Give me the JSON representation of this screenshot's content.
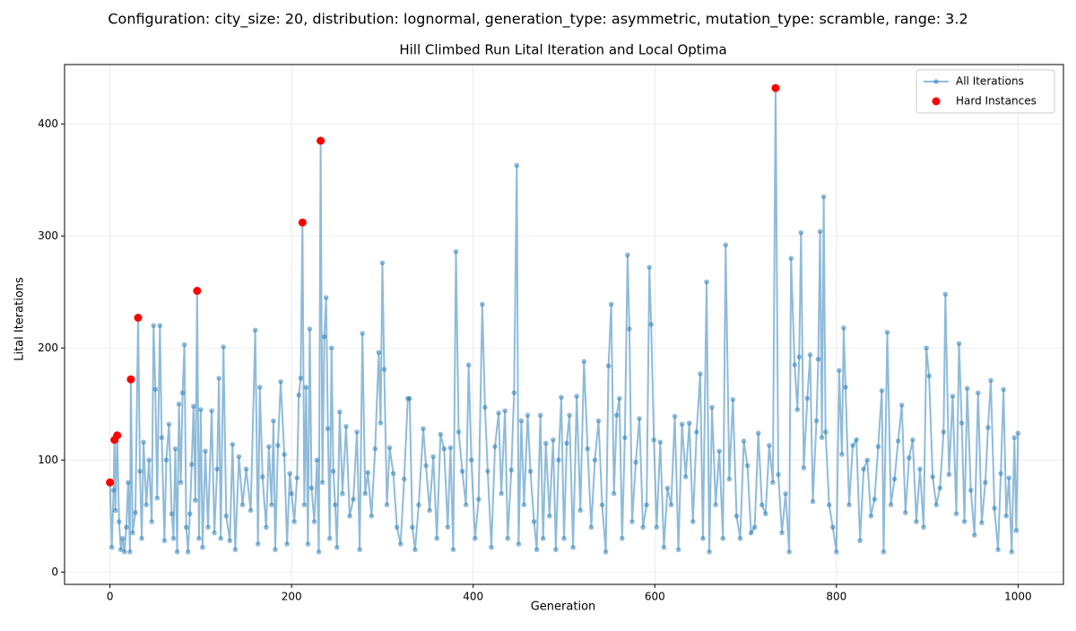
{
  "chart_data": {
    "type": "line",
    "suptitle": "Configuration: city_size: 20, distribution: lognormal, generation_type: asymmetric, mutation_type: scramble, range: 3.2",
    "title": "Hill Climbed Run Lital Iteration and Local Optima",
    "xlabel": "Generation",
    "ylabel": "Lital Iterations",
    "xlim": [
      -50,
      1050
    ],
    "ylim": [
      -11,
      453
    ],
    "xticks": [
      0,
      200,
      400,
      600,
      800,
      1000
    ],
    "yticks": [
      0,
      100,
      200,
      300,
      400
    ],
    "grid": true,
    "legend": "upper right",
    "series": [
      {
        "name": "All Iterations",
        "style": "line",
        "color": "#1f77b4",
        "x": [
          0,
          2,
          4,
          5,
          6,
          8,
          10,
          12,
          14,
          16,
          18,
          20,
          22,
          23,
          25,
          28,
          31,
          33,
          35,
          37,
          40,
          43,
          46,
          48,
          50,
          52,
          55,
          57,
          60,
          62,
          65,
          68,
          70,
          72,
          74,
          76,
          78,
          80,
          82,
          84,
          86,
          88,
          90,
          92,
          94,
          96,
          98,
          100,
          102,
          105,
          108,
          112,
          115,
          118,
          120,
          122,
          125,
          128,
          132,
          135,
          138,
          142,
          146,
          150,
          155,
          160,
          163,
          165,
          168,
          172,
          175,
          178,
          180,
          182,
          185,
          188,
          192,
          195,
          198,
          200,
          203,
          206,
          208,
          210,
          212,
          214,
          216,
          218,
          220,
          222,
          225,
          228,
          230,
          232,
          234,
          236,
          238,
          240,
          242,
          244,
          246,
          248,
          250,
          253,
          256,
          260,
          264,
          268,
          272,
          275,
          278,
          281,
          284,
          288,
          292,
          296,
          298,
          300,
          302,
          305,
          308,
          312,
          316,
          320,
          324,
          328,
          330,
          333,
          336,
          340,
          345,
          348,
          352,
          356,
          360,
          364,
          368,
          372,
          375,
          378,
          381,
          384,
          388,
          392,
          395,
          398,
          402,
          406,
          410,
          413,
          416,
          420,
          424,
          428,
          431,
          435,
          438,
          442,
          445,
          448,
          450,
          453,
          456,
          460,
          463,
          467,
          470,
          474,
          477,
          480,
          484,
          488,
          491,
          494,
          497,
          500,
          503,
          506,
          510,
          514,
          518,
          522,
          526,
          530,
          534,
          538,
          542,
          546,
          549,
          552,
          555,
          558,
          561,
          564,
          567,
          570,
          572,
          575,
          579,
          583,
          587,
          591,
          594,
          596,
          599,
          602,
          606,
          610,
          614,
          618,
          622,
          626,
          630,
          634,
          638,
          642,
          646,
          650,
          653,
          657,
          660,
          663,
          667,
          671,
          675,
          678,
          682,
          686,
          690,
          694,
          698,
          702,
          706,
          710,
          714,
          718,
          722,
          726,
          730,
          733,
          736,
          740,
          744,
          748,
          750,
          754,
          757,
          759,
          761,
          764,
          768,
          771,
          774,
          778,
          780,
          782,
          784,
          786,
          788,
          792,
          796,
          800,
          803,
          806,
          808,
          810,
          814,
          818,
          822,
          826,
          830,
          834,
          838,
          842,
          846,
          850,
          852,
          856,
          860,
          864,
          868,
          872,
          876,
          880,
          884,
          888,
          892,
          896,
          899,
          902,
          906,
          910,
          914,
          918,
          920,
          924,
          928,
          932,
          935,
          938,
          941,
          944,
          948,
          952,
          956,
          960,
          964,
          967,
          970,
          974,
          978,
          981,
          984,
          987,
          990,
          993,
          996,
          998,
          1000
        ],
        "values": [
          80,
          22,
          73,
          118,
          55,
          122,
          45,
          20,
          30,
          18,
          40,
          80,
          18,
          172,
          35,
          53,
          227,
          90,
          30,
          116,
          60,
          100,
          45,
          220,
          163,
          66,
          220,
          120,
          28,
          100,
          132,
          52,
          30,
          110,
          18,
          150,
          80,
          160,
          203,
          40,
          18,
          52,
          96,
          148,
          64,
          251,
          30,
          145,
          22,
          108,
          40,
          144,
          35,
          92,
          173,
          30,
          201,
          50,
          28,
          114,
          20,
          103,
          60,
          92,
          55,
          216,
          25,
          165,
          85,
          40,
          112,
          60,
          135,
          20,
          113,
          170,
          105,
          25,
          88,
          70,
          45,
          84,
          158,
          173,
          312,
          60,
          165,
          25,
          217,
          75,
          45,
          100,
          18,
          385,
          80,
          210,
          245,
          128,
          30,
          200,
          90,
          60,
          22,
          143,
          70,
          130,
          50,
          65,
          125,
          20,
          213,
          70,
          89,
          50,
          110,
          196,
          133,
          276,
          181,
          60,
          111,
          88,
          40,
          25,
          83,
          155,
          155,
          40,
          20,
          60,
          128,
          95,
          55,
          103,
          30,
          123,
          110,
          40,
          111,
          20,
          286,
          125,
          90,
          60,
          185,
          100,
          30,
          65,
          239,
          147,
          90,
          22,
          112,
          142,
          70,
          144,
          30,
          91,
          160,
          363,
          25,
          135,
          60,
          140,
          90,
          45,
          20,
          140,
          30,
          115,
          50,
          118,
          20,
          100,
          156,
          30,
          115,
          140,
          22,
          157,
          55,
          188,
          110,
          40,
          100,
          135,
          60,
          18,
          184,
          239,
          70,
          140,
          155,
          30,
          120,
          283,
          217,
          45,
          98,
          137,
          40,
          60,
          272,
          221,
          118,
          40,
          116,
          22,
          75,
          60,
          139,
          20,
          132,
          85,
          133,
          45,
          125,
          177,
          30,
          259,
          18,
          147,
          60,
          108,
          30,
          292,
          83,
          154,
          50,
          30,
          117,
          95,
          35,
          40,
          124,
          60,
          52,
          113,
          80,
          432,
          87,
          35,
          70,
          18,
          280,
          185,
          145,
          192,
          303,
          93,
          155,
          194,
          63,
          135,
          190,
          304,
          120,
          335,
          125,
          60,
          40,
          18,
          180,
          105,
          218,
          165,
          60,
          113,
          118,
          28,
          92,
          100,
          50,
          65,
          112,
          162,
          18,
          214,
          60,
          83,
          117,
          149,
          53,
          102,
          118,
          45,
          92,
          40,
          200,
          175,
          85,
          60,
          75,
          125,
          248,
          87,
          157,
          52,
          204,
          133,
          45,
          164,
          73,
          33,
          160,
          44,
          80,
          129,
          171,
          57,
          20,
          88,
          163,
          50,
          84,
          18,
          120,
          37,
          124
        ]
      },
      {
        "name": "Hard Instances",
        "style": "scatter",
        "color": "#ff0000",
        "x": [
          0,
          5,
          8,
          23,
          31,
          96,
          212,
          232,
          733
        ],
        "values": [
          80,
          118,
          122,
          172,
          227,
          251,
          312,
          385,
          432
        ]
      }
    ]
  }
}
